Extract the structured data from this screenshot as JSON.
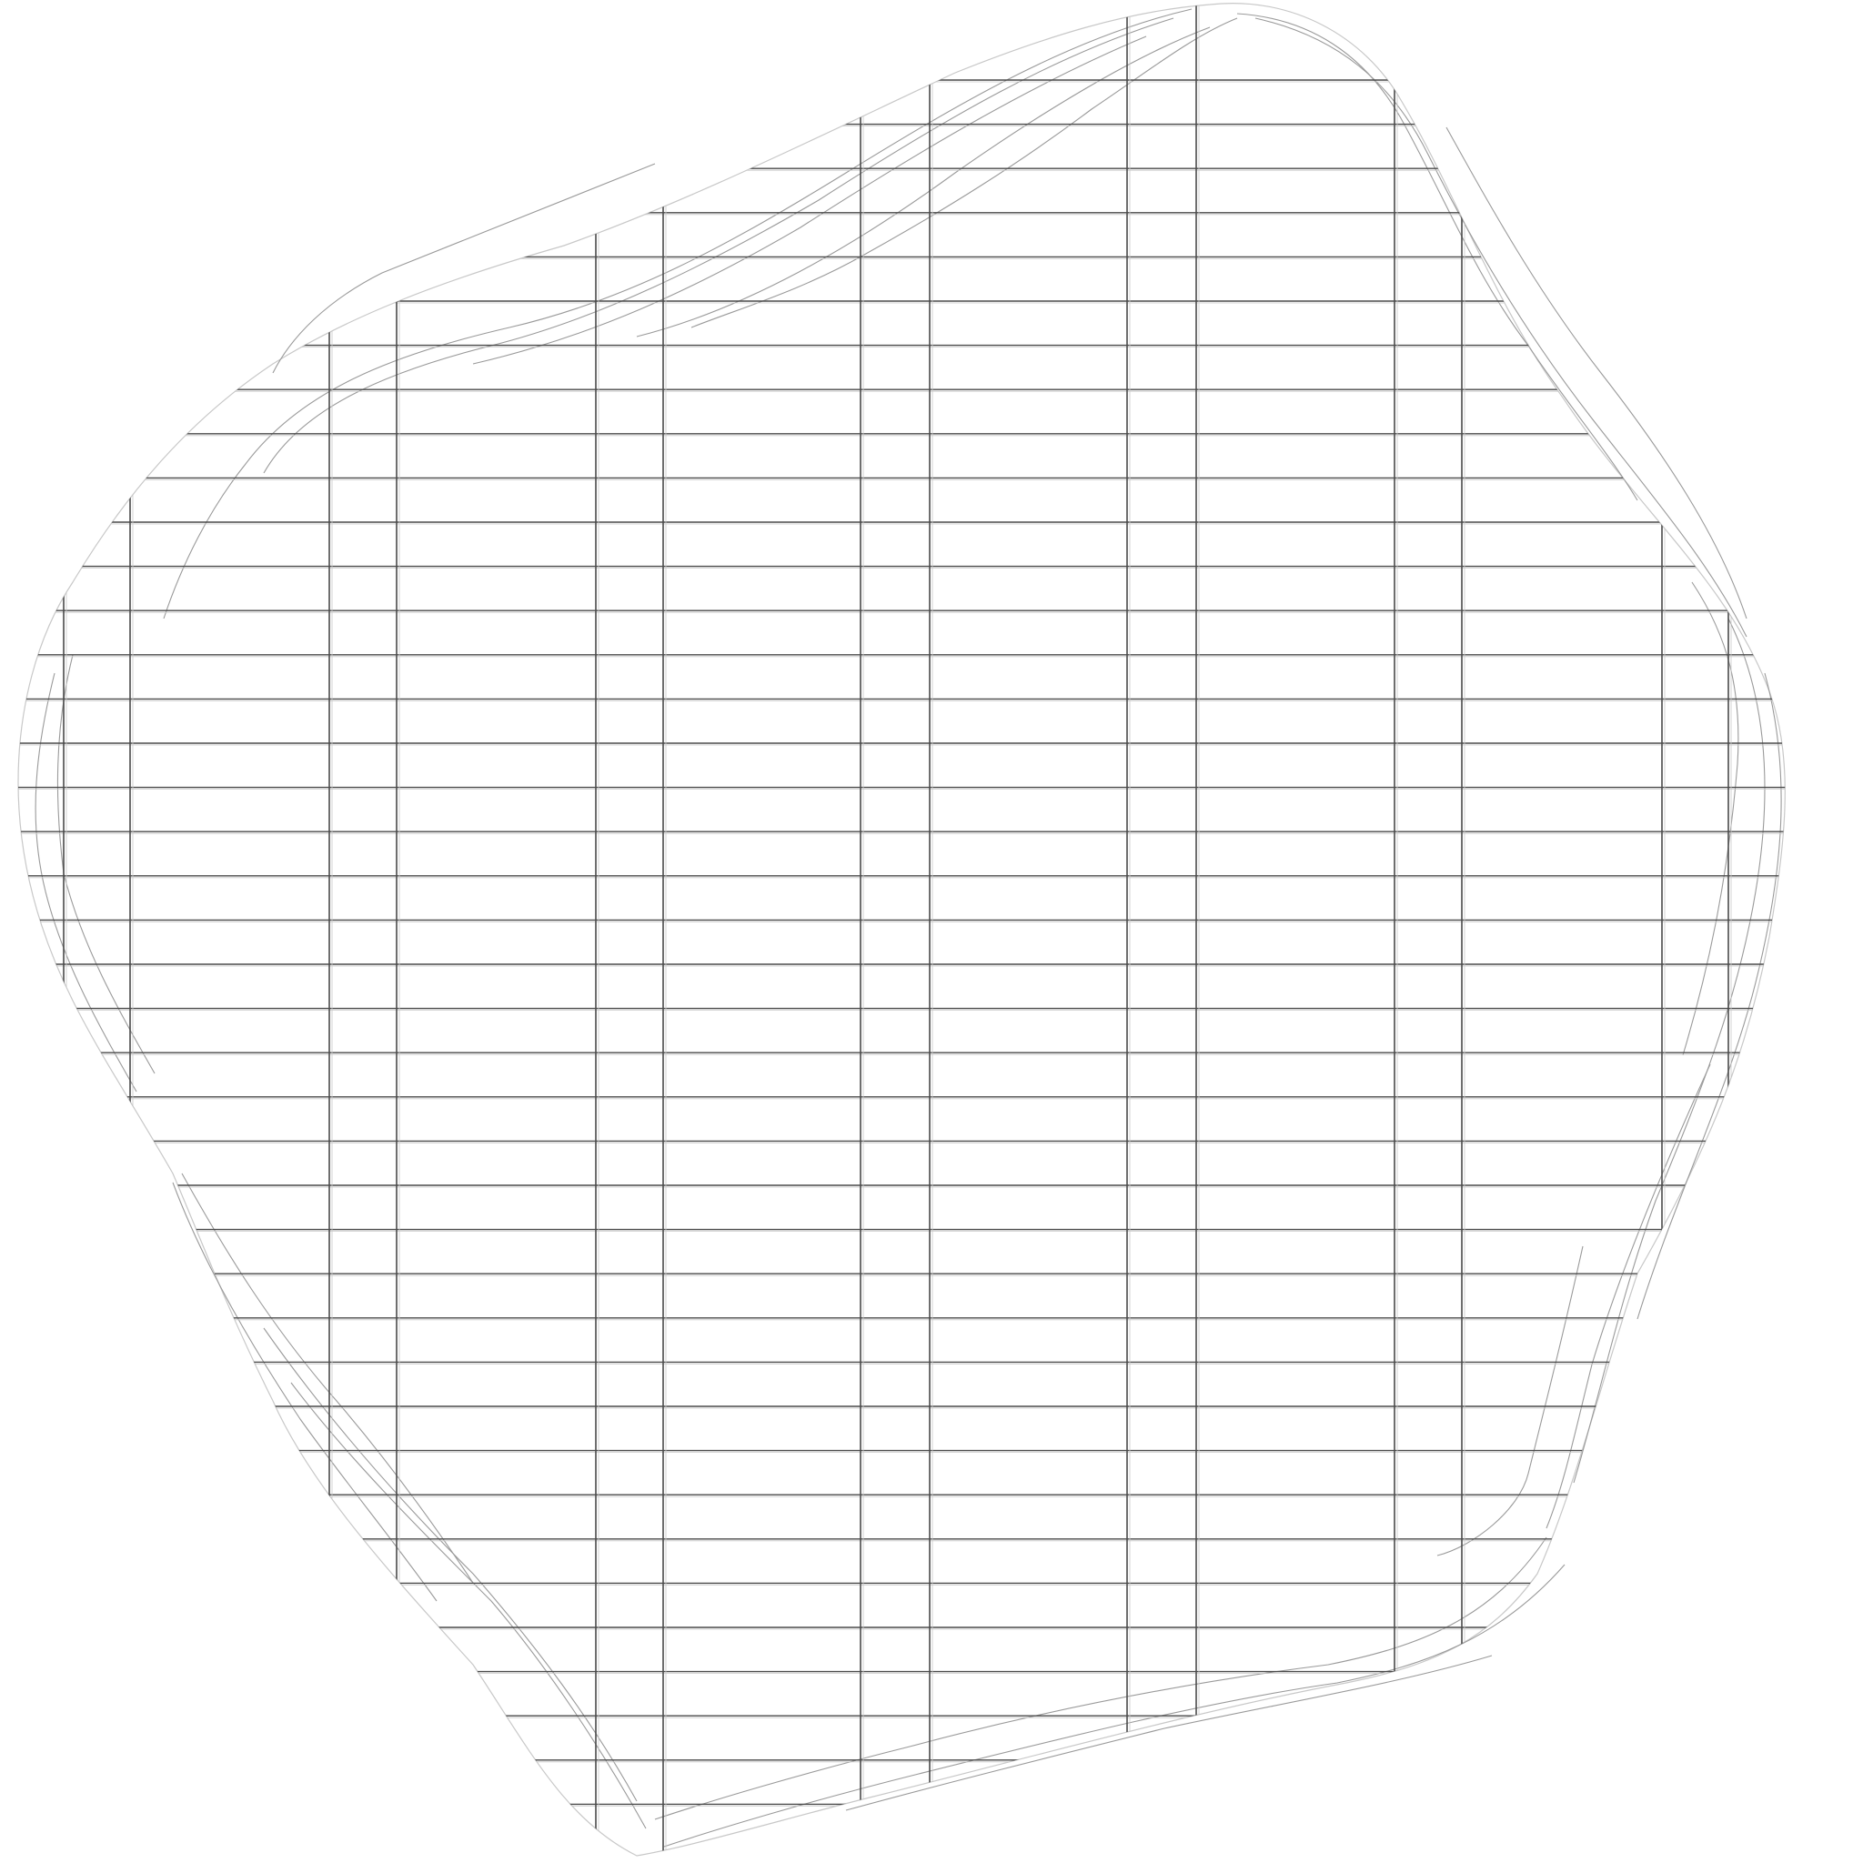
{
  "map": {
    "background_color": "#ffffff",
    "street_color": "#4a4a4a",
    "faint_color": "#c8c8c8",
    "curve_color": "#9a9a9a",
    "labels": []
  }
}
